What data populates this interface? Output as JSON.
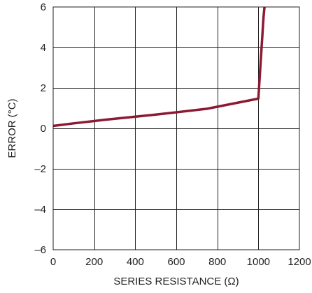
{
  "chart_data": {
    "type": "line",
    "xlabel": "SERIES RESISTANCE (Ω)",
    "ylabel": "ERROR (°C)",
    "xlim": [
      0,
      1200
    ],
    "ylim": [
      -6,
      6
    ],
    "x_ticks": [
      0,
      200,
      400,
      600,
      800,
      1000,
      1200
    ],
    "y_ticks": [
      6,
      4,
      2,
      0,
      -2,
      -4,
      -6
    ],
    "x_tick_labels": [
      "0",
      "200",
      "400",
      "600",
      "800",
      "1000",
      "1200"
    ],
    "y_tick_labels": [
      "6",
      "4",
      "2",
      "0",
      "–2",
      "–4",
      "–6"
    ],
    "grid": true,
    "series": [
      {
        "color": "#8b1a32",
        "x": [
          0,
          100,
          250,
          500,
          750,
          1000,
          1025,
          1030
        ],
        "y": [
          0.12,
          0.25,
          0.42,
          0.68,
          0.97,
          1.47,
          5.5,
          6.0
        ]
      }
    ]
  }
}
